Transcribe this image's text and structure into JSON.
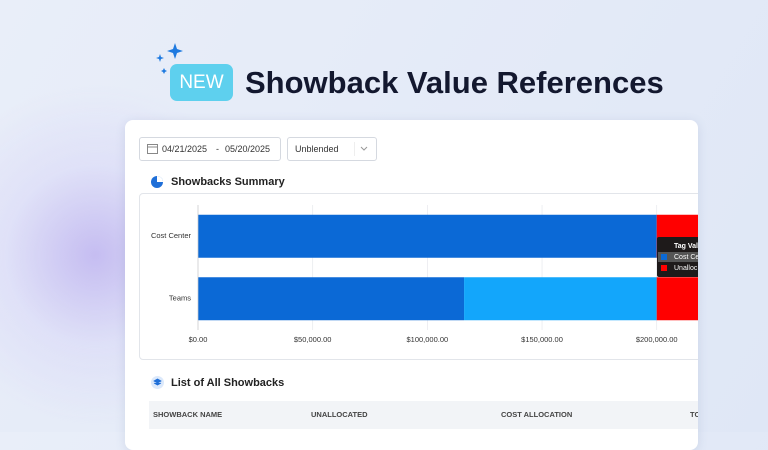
{
  "badge": "NEW",
  "title": "Showback Value References",
  "filters": {
    "date_start": "04/21/2025",
    "date_separator": "-",
    "date_end": "05/20/2025",
    "cost_type": "Unblended"
  },
  "summary_title": "Showbacks Summary",
  "chart_data": {
    "type": "stacked-bar-horizontal",
    "categories": [
      "Cost Center",
      "Teams"
    ],
    "series": [
      {
        "color": "#0b69d6",
        "values": [
          200000,
          116000
        ]
      },
      {
        "color": "#13a6fb",
        "values": [
          null,
          84000
        ]
      },
      {
        "color": "#ff0000",
        "values": [
          18000,
          18000
        ]
      }
    ],
    "xlim": [
      0,
      218000
    ],
    "xticks": [
      {
        "value": 0,
        "label": "$0.00"
      },
      {
        "value": 50000,
        "label": "$50,000.00"
      },
      {
        "value": 100000,
        "label": "$100,000.00"
      },
      {
        "value": 150000,
        "label": "$150,000.00"
      },
      {
        "value": 200000,
        "label": "$200,000.00"
      }
    ],
    "grid": true
  },
  "tooltip": {
    "title": "Tag Val",
    "items": [
      "Cost Ce",
      "Unalloc"
    ]
  },
  "list": {
    "title": "List of All Showbacks",
    "columns": [
      "SHOWBACK NAME",
      "UNALLOCATED",
      "COST ALLOCATION",
      "TO"
    ]
  }
}
